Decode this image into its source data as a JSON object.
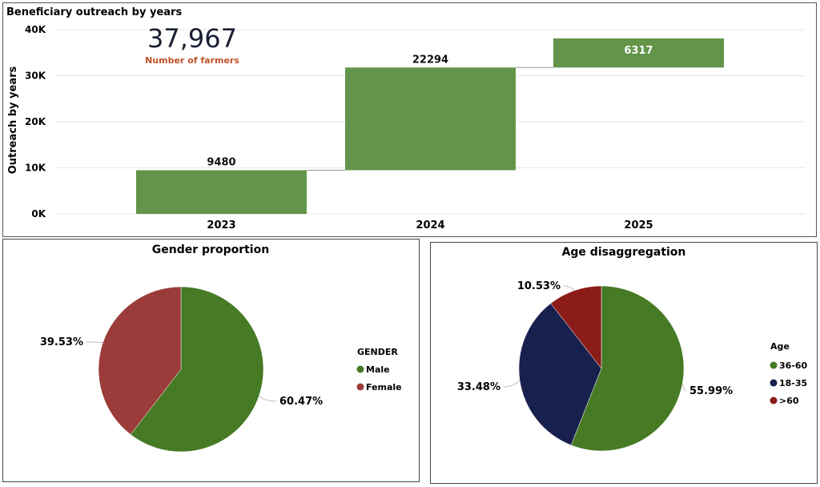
{
  "kpi": {
    "value": "37,967",
    "label": "Number of farmers"
  },
  "chart_data": [
    {
      "type": "waterfall",
      "title": "Beneficiary outreach by years",
      "ylabel": "Outreach by years",
      "xlabel": "",
      "categories": [
        "2023",
        "2024",
        "2025"
      ],
      "values": [
        9480,
        22294,
        6317
      ],
      "data_labels": [
        "9480",
        "22294",
        "6317"
      ],
      "yticks": [
        0,
        10000,
        20000,
        30000,
        40000
      ],
      "ytick_labels": [
        "0K",
        "10K",
        "20K",
        "30K",
        "40K"
      ],
      "ylim": [
        0,
        40000
      ],
      "grid": true,
      "color": "#62954A"
    },
    {
      "type": "pie",
      "title": "Gender proportion",
      "legend_title": "GENDER",
      "legend_position": "right",
      "labels": [
        "Male",
        "Female"
      ],
      "values": [
        60.47,
        39.53
      ],
      "data_labels": [
        "60.47%",
        "39.53%"
      ],
      "colors": [
        "#467A25",
        "#9B3C3A"
      ]
    },
    {
      "type": "pie",
      "title": "Age disaggregation",
      "legend_title": "Age",
      "legend_position": "right",
      "labels": [
        "36-60",
        "18-35",
        ">60"
      ],
      "values": [
        55.99,
        33.48,
        10.53
      ],
      "data_labels": [
        "55.99%",
        "33.48%",
        "10.53%"
      ],
      "colors": [
        "#467A25",
        "#18214D",
        "#8B1C17"
      ]
    }
  ]
}
